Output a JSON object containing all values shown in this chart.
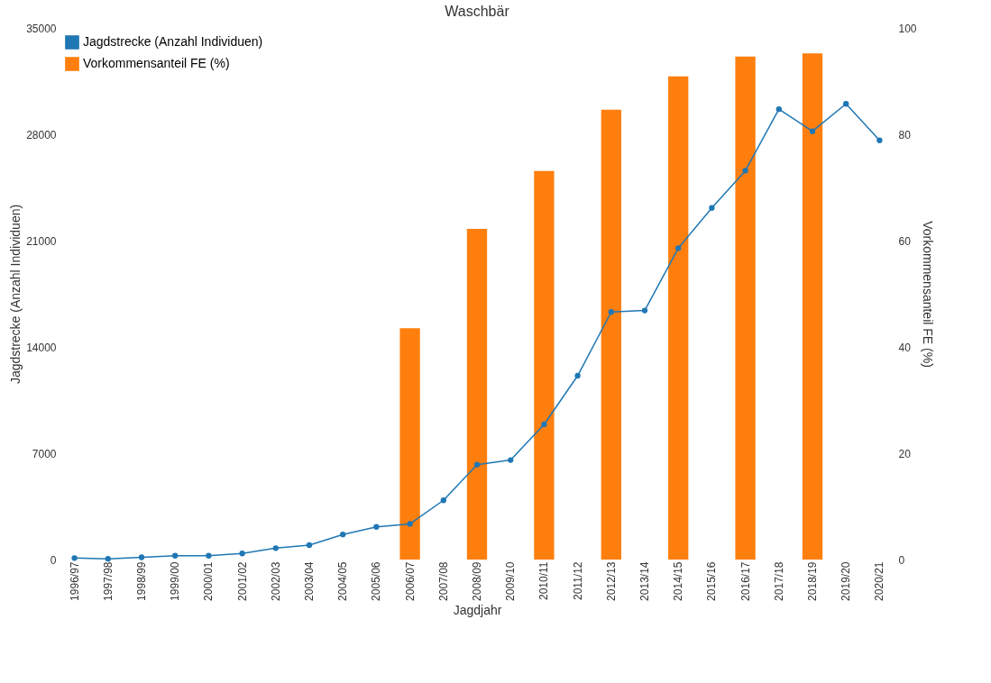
{
  "chart_data": {
    "type": "bar",
    "title": "Waschbär",
    "xlabel": "Jagdjahr",
    "ylabel": "Jagdstrecke (Anzahl Individuen)",
    "y2label": "Vorkommensanteil FE (%)",
    "categories": [
      "1996/97",
      "1997/98",
      "1998/99",
      "1999/00",
      "2000/01",
      "2001/02",
      "2002/03",
      "2003/04",
      "2004/05",
      "2005/06",
      "2006/07",
      "2007/08",
      "2008/09",
      "2009/10",
      "2010/11",
      "2011/12",
      "2012/13",
      "2013/14",
      "2014/15",
      "2015/16",
      "2016/17",
      "2017/18",
      "2018/19",
      "2019/20",
      "2020/21"
    ],
    "series": [
      {
        "name": "Jagdstrecke (Anzahl Individuen)",
        "type": "line",
        "color": "#1f77b4",
        "values": [
          100,
          50,
          150,
          250,
          250,
          400,
          750,
          950,
          1650,
          2150,
          2350,
          3900,
          6250,
          6550,
          8900,
          12100,
          16300,
          16400,
          20500,
          23150,
          25600,
          29650,
          28200,
          30000,
          27600
        ]
      },
      {
        "name": "Vorkommensanteil FE (%)",
        "axis": "y2",
        "color": "#ff7f0e",
        "values": [
          null,
          null,
          null,
          null,
          null,
          null,
          null,
          null,
          null,
          null,
          43.5,
          null,
          62.2,
          null,
          73.1,
          null,
          84.6,
          null,
          90.9,
          null,
          94.6,
          null,
          95.2,
          null,
          null
        ]
      }
    ],
    "ylim": [
      0,
      35000
    ],
    "yticks": [
      0,
      7000,
      14000,
      21000,
      28000,
      35000
    ],
    "y2lim": [
      0,
      100
    ],
    "y2ticks": [
      0,
      20,
      40,
      60,
      80,
      100
    ],
    "marker": "circle",
    "legend": "top left",
    "grid": false
  }
}
